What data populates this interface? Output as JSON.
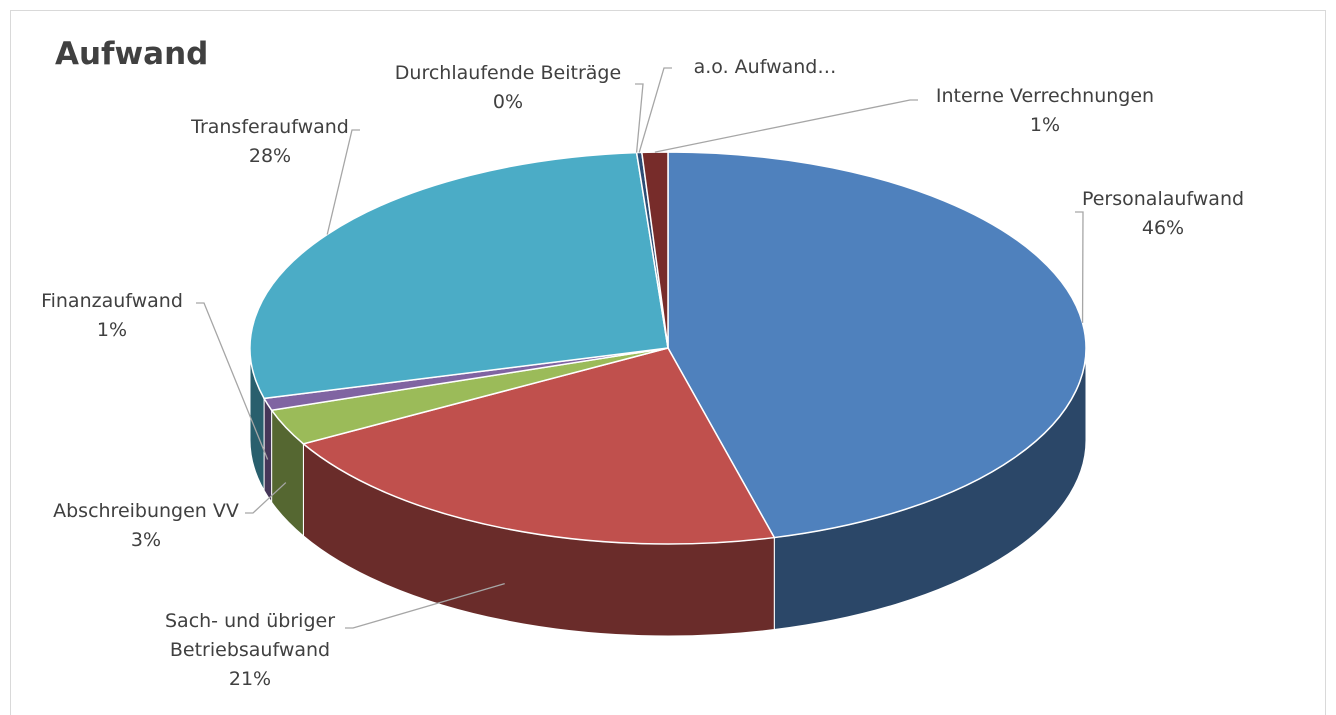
{
  "chart_data": {
    "type": "pie",
    "title": "Aufwand",
    "categories": [
      "Personalaufwand",
      "Sach- und übriger Betriebsaufwand",
      "Abschreibungen VV",
      "Finanzaufwand",
      "Transferaufwand",
      "Durchlaufende Beiträge",
      "a.o. Aufwand…",
      "Interne Verrechnungen"
    ],
    "values": [
      46,
      21,
      3,
      1,
      28,
      0,
      0.2,
      1
    ],
    "value_labels": [
      "46%",
      "21%",
      "3%",
      "1%",
      "28%",
      "0%",
      null,
      "1%"
    ],
    "colors": [
      "#4f81bd",
      "#c0504d",
      "#9bbb59",
      "#8064a2",
      "#4bacc6",
      "#f79646",
      "#2c4d75",
      "#772c2a"
    ]
  }
}
